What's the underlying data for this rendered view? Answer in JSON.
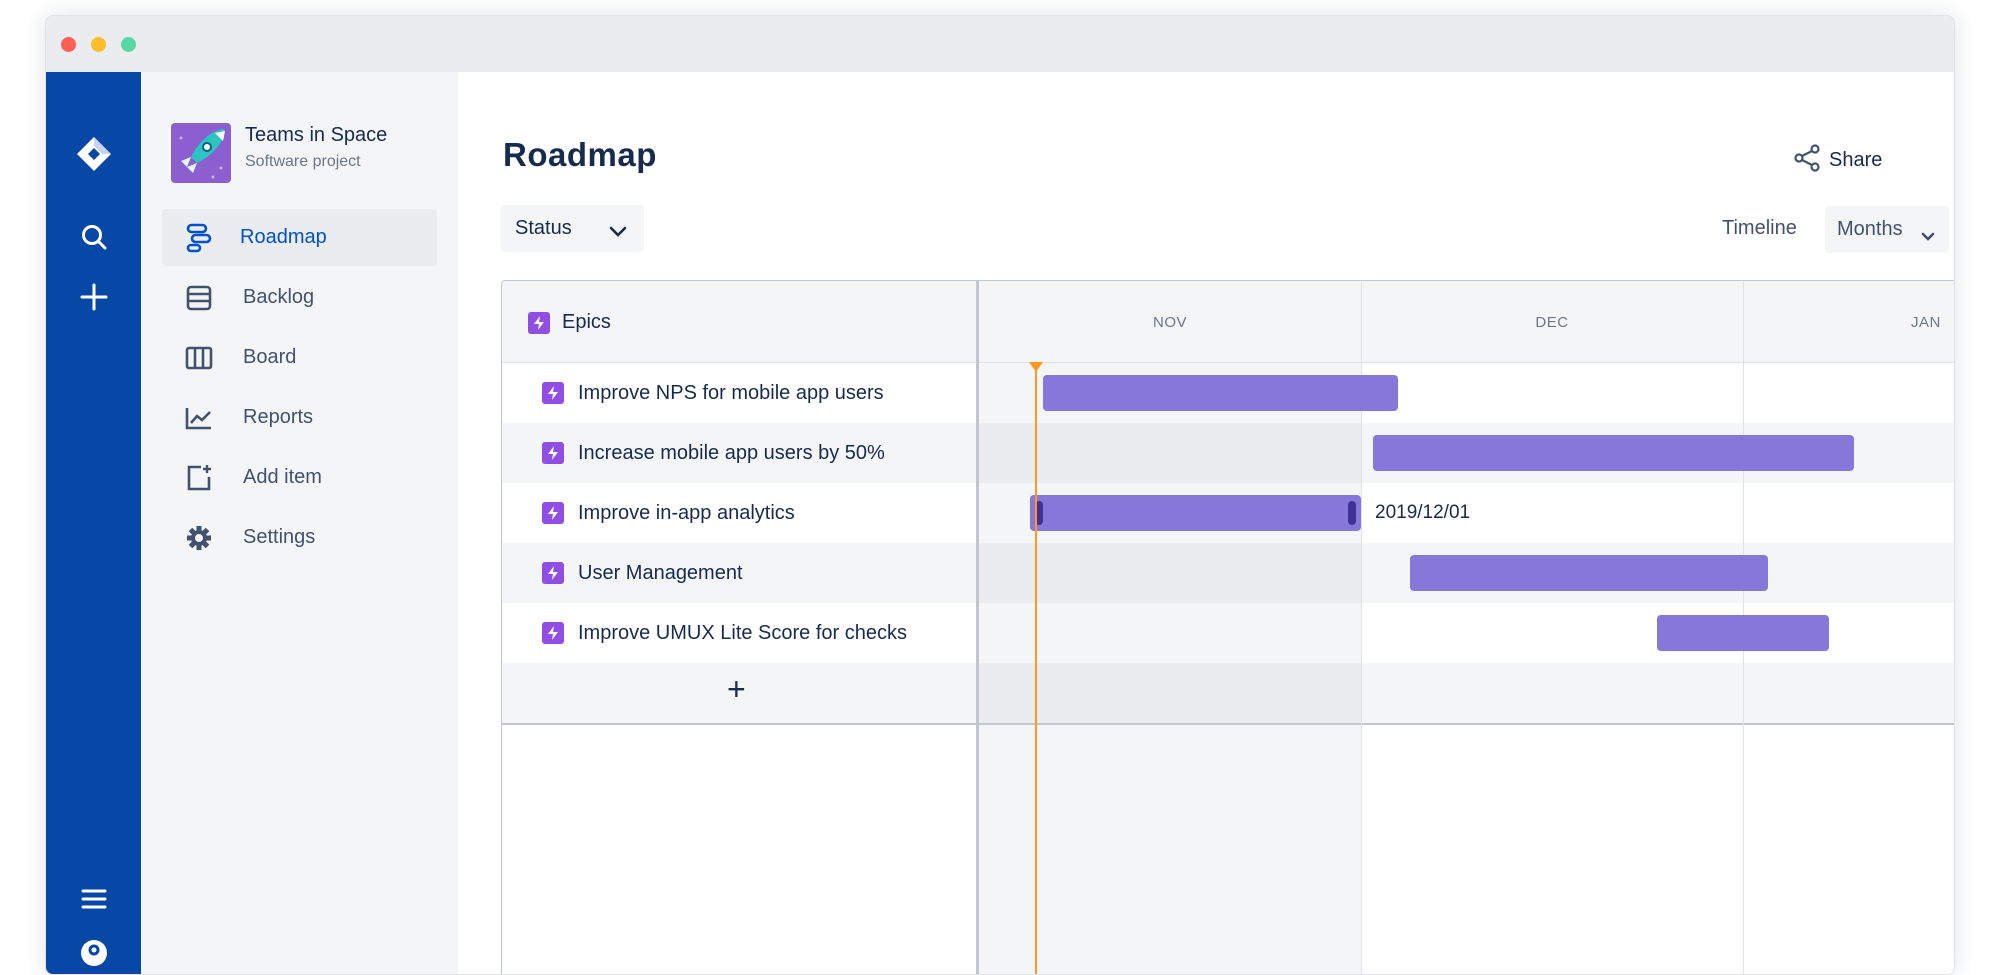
{
  "window": {
    "traffic_lights": [
      "#ff5f57",
      "#ffbd2e",
      "#57d9a3"
    ]
  },
  "global_nav": {
    "icons": [
      "jira-logo-icon",
      "search-icon",
      "create-plus-icon",
      "menu-icon",
      "help-icon"
    ],
    "color": "#0747a6"
  },
  "project": {
    "name": "Teams in Space",
    "type": "Software project"
  },
  "sidebar": {
    "items": [
      {
        "label": "Roadmap",
        "icon": "roadmap-icon",
        "active": true
      },
      {
        "label": "Backlog",
        "icon": "backlog-icon"
      },
      {
        "label": "Board",
        "icon": "board-icon"
      },
      {
        "label": "Reports",
        "icon": "reports-icon"
      },
      {
        "label": "Add item",
        "icon": "add-item-icon"
      },
      {
        "label": "Settings",
        "icon": "settings-icon"
      }
    ]
  },
  "header": {
    "title": "Roadmap",
    "share_label": "Share",
    "status_filter": "Status",
    "timeline_label": "Timeline",
    "timeline_select": "Months"
  },
  "roadmap": {
    "column_header": "Epics",
    "months": [
      "NOV",
      "DEC",
      "JAN"
    ],
    "today": "2019-11-05",
    "bar_color": "#8777d9",
    "today_color": "#ff991f",
    "epics": [
      {
        "name": "Improve NPS for mobile app users",
        "start": "2019-11-06",
        "end": "2019-12-04"
      },
      {
        "name": "Increase mobile app users by 50%",
        "start": "2019-12-02",
        "end": "2020-01-10"
      },
      {
        "name": "Improve in-app analytics",
        "start": "2019-11-05",
        "end": "2019-12-01",
        "end_label": "2019/12/01",
        "selected": true
      },
      {
        "name": "User Management",
        "start": "2019-12-05",
        "end": "2020-01-03"
      },
      {
        "name": "Improve UMUX Lite Score for checks",
        "start": "2019-12-25",
        "end": "2020-01-08"
      }
    ],
    "add_label": "+"
  }
}
